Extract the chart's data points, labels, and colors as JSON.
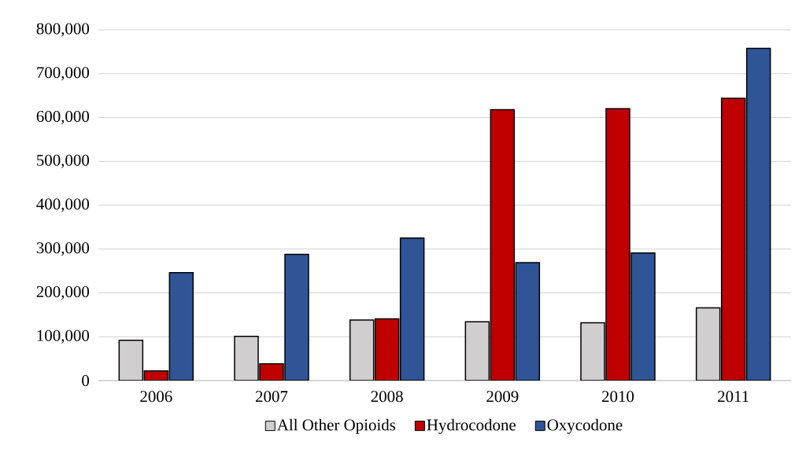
{
  "chart_data": {
    "type": "bar",
    "categories": [
      "2006",
      "2007",
      "2008",
      "2009",
      "2010",
      "2011"
    ],
    "series": [
      {
        "name": "All Other Opioids",
        "color": "#d0cece",
        "values": [
          92000,
          101000,
          138000,
          134000,
          132000,
          166000
        ]
      },
      {
        "name": "Hydrocodone",
        "color": "#c00000",
        "values": [
          22000,
          38000,
          141000,
          618000,
          620000,
          644000
        ]
      },
      {
        "name": "Oxycodone",
        "color": "#2f5597",
        "values": [
          246000,
          288000,
          325000,
          269000,
          291000,
          758000
        ]
      }
    ],
    "ylim": [
      0,
      800000
    ],
    "yticks": [
      {
        "value": 0,
        "label": "0"
      },
      {
        "value": 100000,
        "label": "100,000"
      },
      {
        "value": 200000,
        "label": "200,000"
      },
      {
        "value": 300000,
        "label": "300,000"
      },
      {
        "value": 400000,
        "label": "400,000"
      },
      {
        "value": 500000,
        "label": "500,000"
      },
      {
        "value": 600000,
        "label": "600,000"
      },
      {
        "value": 700000,
        "label": "700,000"
      },
      {
        "value": 800000,
        "label": "800,000"
      }
    ],
    "grid": "y",
    "legend": "bottom"
  }
}
